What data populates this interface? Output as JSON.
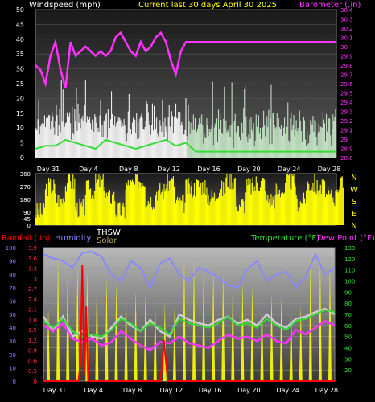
{
  "header": {
    "left_title": "Windspeed (mph)",
    "center_title": "Current last 30 days April 30 2025",
    "right_title": "Barometer (.in)"
  },
  "colors": {
    "wind": "#ffffff",
    "wind_avg": "#33dd33",
    "barometer": "#ff33ff",
    "direction": "#ffff00",
    "rain_rate": "#ff0000",
    "humidity": "#8888ff",
    "thsw": "#ffffff",
    "solar": "#ffff00",
    "temperature": "#33dd33",
    "dew_point": "#ff33ff",
    "title_yellow": "#ffff00"
  },
  "legend": {
    "rainfall": "Rainfall (.in)",
    "humidity": "Humidity",
    "thsw": "THSW",
    "solar": "Solar",
    "temperature": "Temperature (°F)",
    "dew_point": "Dew Point (°F)"
  },
  "compass": [
    "N",
    "W",
    "S",
    "E",
    "N"
  ],
  "x_labels": [
    "Day 31",
    "Day 4",
    "Day 8",
    "Day 12",
    "Day 16",
    "Day 20",
    "Day 24",
    "Day 28"
  ],
  "chart_data": [
    {
      "type": "line",
      "panel": "wind_barometer",
      "x_range_days": [
        0,
        30
      ],
      "y_left": {
        "label": "Windspeed (mph)",
        "ylim": [
          0,
          50
        ],
        "ticks": [
          0,
          5,
          10,
          15,
          20,
          25,
          30,
          35,
          40,
          45,
          50
        ]
      },
      "y_right": {
        "label": "Barometer (.in)",
        "ylim": [
          28.8,
          30.4
        ],
        "ticks": [
          "28.8",
          "28.9",
          "29",
          "29.1",
          "29.2",
          "29.3",
          "29.4",
          "29.5",
          "29.6",
          "29.7",
          "29.8",
          "29.9",
          "30",
          "30.1",
          "30.2",
          "30.3",
          "30.4"
        ]
      },
      "series": [
        {
          "key": "barometer",
          "axis": "right",
          "x": [
            0,
            0.5,
            1.0,
            1.5,
            2.0,
            2.5,
            3.0,
            3.5,
            4.0,
            4.5,
            5.0,
            5.5,
            6.0,
            6.5,
            7.0,
            7.5,
            8.0,
            8.5,
            9.0,
            9.5,
            10.0,
            10.5,
            11.0,
            11.5,
            12.0,
            12.5,
            13.0,
            13.5,
            14.0,
            14.5,
            15,
            30
          ],
          "values": [
            29.8,
            29.75,
            29.6,
            29.9,
            30.05,
            29.75,
            29.55,
            30.05,
            29.9,
            29.95,
            30.0,
            29.95,
            29.9,
            29.95,
            29.9,
            29.95,
            30.1,
            30.15,
            30.05,
            29.95,
            29.9,
            30.05,
            29.95,
            30.0,
            30.1,
            30.15,
            30.05,
            29.85,
            29.7,
            29.95,
            30.05,
            30.05
          ]
        },
        {
          "key": "wind_avg",
          "axis": "left",
          "x": [
            0,
            1,
            2,
            3,
            4,
            5,
            6,
            7,
            8,
            9,
            10,
            11,
            12,
            13,
            14,
            15,
            16,
            17,
            18,
            19,
            20,
            21,
            22,
            23,
            24,
            25,
            26,
            27,
            28,
            29,
            30
          ],
          "values": [
            3,
            4,
            4,
            6,
            5,
            4,
            3,
            6,
            5,
            4,
            3,
            4,
            5,
            6,
            4,
            5,
            2,
            2,
            2,
            2,
            2,
            2,
            2,
            2,
            2,
            2,
            2,
            2,
            2,
            2,
            2
          ]
        }
      ]
    },
    {
      "type": "area",
      "panel": "wind_direction",
      "ylim": [
        0,
        360
      ],
      "ticks": [
        0,
        45,
        90,
        180,
        270,
        360
      ],
      "series": [
        {
          "key": "direction",
          "values": [
            90,
            270,
            180,
            300,
            120,
            250,
            300,
            200,
            100,
            280,
            320,
            180,
            240,
            300,
            150,
            260,
            280,
            200,
            250,
            320,
            150,
            270,
            300,
            180,
            240,
            310,
            160,
            290,
            260,
            200,
            280
          ]
        }
      ]
    },
    {
      "type": "line",
      "panel": "rain_temp_humidity",
      "y_left_rain": {
        "label": "Rainfall (.in)",
        "ylim": [
          0,
          3.9
        ],
        "ticks": [
          "0",
          "0.3",
          "0.6",
          "0.9",
          "1.2",
          "1.5",
          "1.8",
          "2.1",
          "2.4",
          "2.7",
          "3",
          "3.3",
          "3.6",
          "3.9"
        ]
      },
      "y_left_humidity": {
        "label": "Humidity",
        "ylim": [
          0,
          100
        ],
        "ticks": [
          0,
          10,
          20,
          30,
          40,
          50,
          60,
          70,
          80,
          90,
          100
        ]
      },
      "y_right": {
        "label": "Temperature (°F)",
        "ylim": [
          10,
          130
        ],
        "ticks": [
          20,
          30,
          40,
          50,
          60,
          70,
          80,
          90,
          100,
          110,
          120,
          130
        ]
      },
      "series": [
        {
          "key": "humidity",
          "axis": "humidity",
          "x": [
            0,
            1,
            2,
            3,
            4,
            5,
            6,
            7,
            8,
            9,
            10,
            11,
            12,
            13,
            14,
            15,
            16,
            17,
            18,
            19,
            20,
            21,
            22,
            23,
            24,
            25,
            26,
            27,
            28,
            29,
            30
          ],
          "values": [
            95,
            92,
            90,
            85,
            96,
            97,
            93,
            80,
            75,
            90,
            85,
            70,
            88,
            92,
            80,
            75,
            85,
            82,
            78,
            72,
            70,
            84,
            90,
            75,
            80,
            82,
            70,
            78,
            95,
            80,
            85
          ]
        },
        {
          "key": "thsw",
          "axis": "right",
          "x": [
            0,
            1,
            2,
            3,
            4,
            5,
            6,
            7,
            8,
            9,
            10,
            11,
            12,
            13,
            14,
            15,
            16,
            17,
            18,
            19,
            20,
            21,
            22,
            23,
            24,
            25,
            26,
            27,
            28,
            29,
            30
          ],
          "values": [
            68,
            55,
            68,
            50,
            55,
            50,
            48,
            58,
            68,
            60,
            55,
            65,
            55,
            50,
            70,
            65,
            62,
            60,
            65,
            68,
            62,
            65,
            60,
            70,
            62,
            58,
            66,
            68,
            72,
            75,
            70
          ]
        },
        {
          "key": "temperature",
          "axis": "right",
          "x": [
            0,
            1,
            2,
            3,
            4,
            5,
            6,
            7,
            8,
            9,
            10,
            11,
            12,
            13,
            14,
            15,
            16,
            17,
            18,
            19,
            20,
            21,
            22,
            23,
            24,
            25,
            26,
            27,
            28,
            29,
            30
          ],
          "values": [
            64,
            58,
            66,
            55,
            50,
            52,
            50,
            56,
            66,
            62,
            55,
            62,
            58,
            52,
            66,
            62,
            60,
            58,
            62,
            68,
            60,
            62,
            58,
            66,
            60,
            56,
            64,
            66,
            70,
            74,
            72
          ]
        },
        {
          "key": "dew_point",
          "axis": "right",
          "x": [
            0,
            1,
            2,
            3,
            4,
            5,
            6,
            7,
            8,
            9,
            10,
            11,
            12,
            13,
            14,
            15,
            16,
            17,
            18,
            19,
            20,
            21,
            22,
            23,
            24,
            25,
            26,
            27,
            28,
            29,
            30
          ],
          "values": [
            60,
            55,
            62,
            48,
            45,
            48,
            42,
            45,
            55,
            48,
            42,
            38,
            45,
            44,
            50,
            44,
            42,
            40,
            46,
            52,
            48,
            50,
            46,
            52,
            46,
            44,
            56,
            52,
            58,
            64,
            60
          ]
        },
        {
          "key": "rain_rate",
          "axis": "rain",
          "x": [
            0,
            3.6,
            3.8,
            4.0,
            4.2,
            4.4,
            4.6,
            5.0,
            12.0,
            12.2,
            12.4,
            12.6,
            12.8,
            30
          ],
          "values": [
            0,
            0,
            0.5,
            3.4,
            0.2,
            2.2,
            0,
            0,
            0,
            0.4,
            1.2,
            0.6,
            0,
            0
          ]
        }
      ]
    }
  ]
}
